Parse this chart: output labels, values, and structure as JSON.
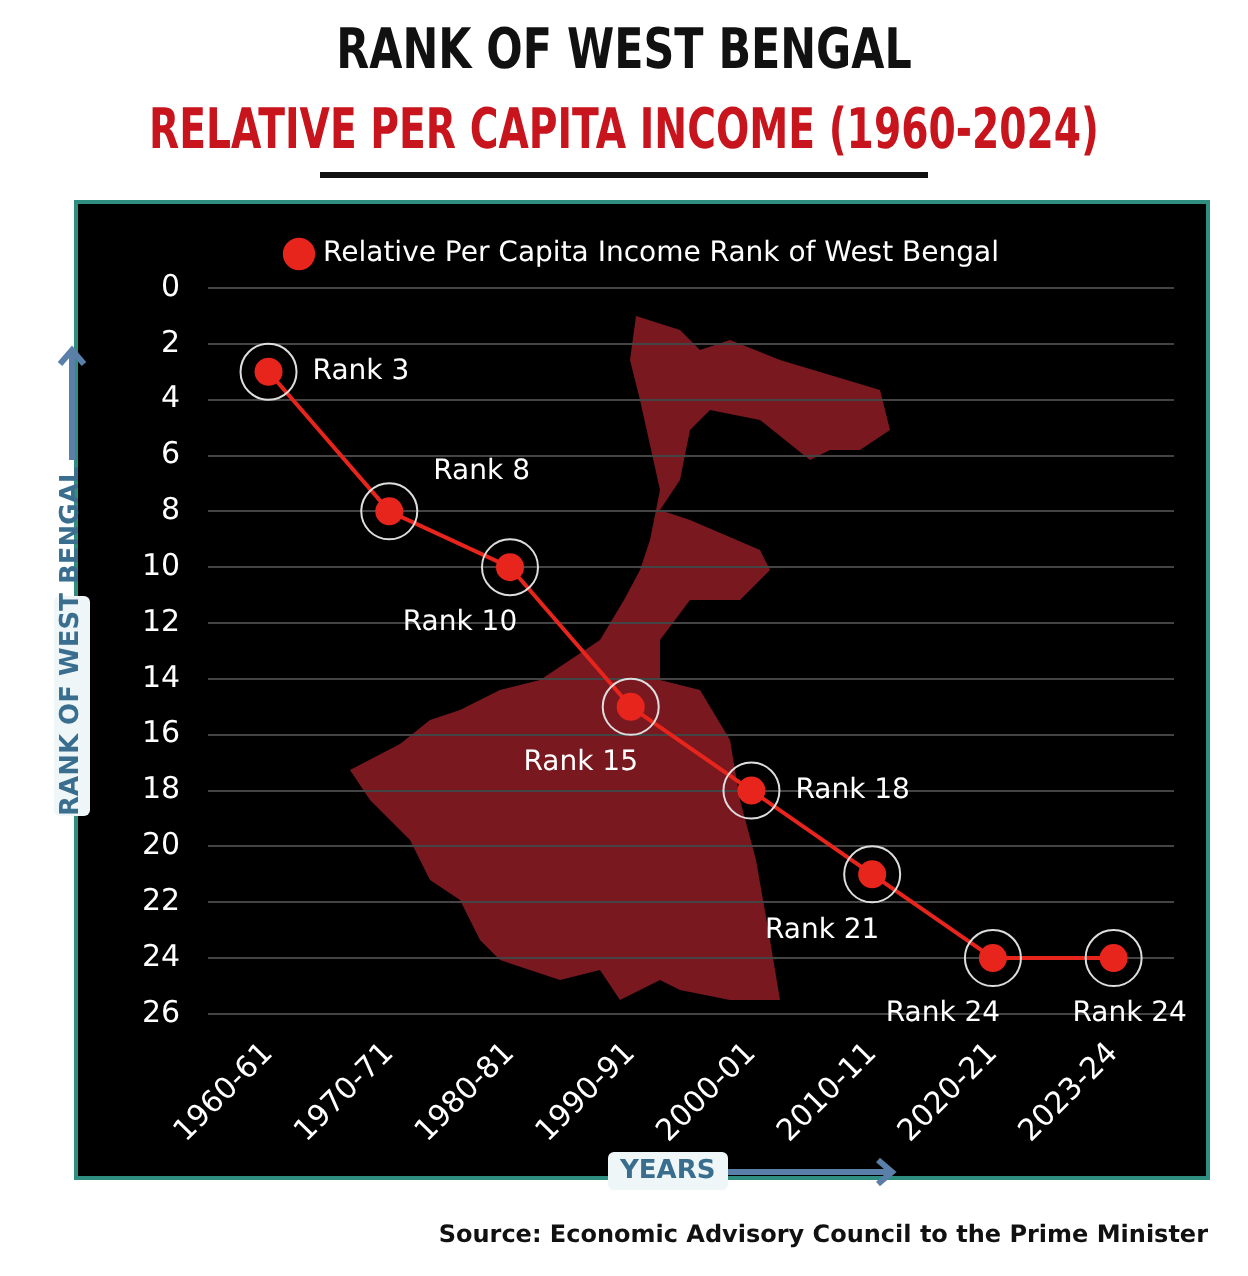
{
  "chart_data": {
    "type": "line",
    "title": "RANK OF WEST BENGAL",
    "subtitle": "RELATIVE PER CAPITA INCOME (1960-2024)",
    "xlabel": "YEARS",
    "ylabel": "RANK OF WEST BENGAL",
    "categories": [
      "1960-61",
      "1970-71",
      "1980-81",
      "1990-91",
      "2000-01",
      "2010-11",
      "2020-21",
      "2023-24"
    ],
    "series": [
      {
        "name": "Relative Per Capita Income Rank of West Bengal",
        "color": "#e8251c",
        "values": [
          3,
          8,
          10,
          15,
          18,
          21,
          24,
          24
        ],
        "value_labels": [
          "Rank 3",
          "Rank 8",
          "Rank 10",
          "Rank 15",
          "Rank 18",
          "Rank 21",
          "Rank 24",
          "Rank 24"
        ]
      }
    ],
    "ylim": [
      26,
      0
    ],
    "yticks": [
      0,
      2,
      4,
      6,
      8,
      10,
      12,
      14,
      16,
      18,
      20,
      22,
      24,
      26
    ],
    "grid": "y",
    "legend": "top",
    "marker": "circle",
    "line_style": "solid",
    "annotations": [
      "Source: Economic Advisory Council to the Prime Minister"
    ]
  }
}
